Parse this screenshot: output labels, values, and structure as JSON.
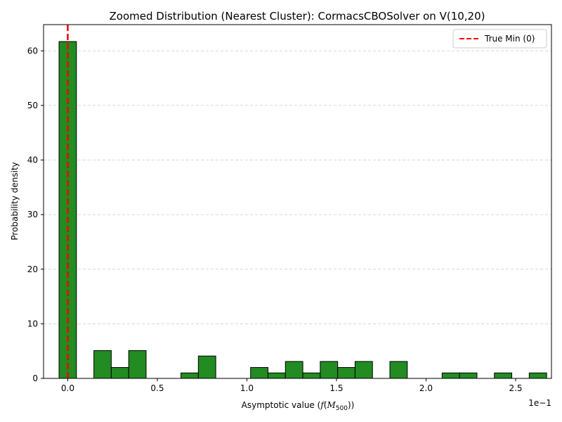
{
  "chart_data": {
    "type": "bar",
    "title": "Zoomed Distribution (Nearest Cluster): CormacsCBOSolver on V(10,20)",
    "xlabel_prefix": "Asymptotic value (",
    "xlabel_math_f": "f",
    "xlabel_math_M": "M",
    "xlabel_math_sub": "500",
    "xlabel_suffix": ")",
    "ylabel": "Probability density",
    "x_offset_text": "1e−1",
    "xlim": [
      -0.0135,
      0.27
    ],
    "ylim": [
      0,
      64.8
    ],
    "bin_width": 0.00972,
    "bin_start": -0.00486,
    "values": [
      61.7,
      0,
      5.1,
      2.0,
      5.1,
      0,
      0,
      1.0,
      4.1,
      0,
      0,
      2.0,
      1.0,
      3.1,
      1.0,
      3.1,
      2.0,
      3.1,
      0,
      3.1,
      0,
      0,
      1.0,
      1.0,
      0,
      1.0,
      0,
      1.0
    ],
    "x_ticks": [
      0.0,
      0.05,
      0.1,
      0.15,
      0.2,
      0.25
    ],
    "x_tick_labels": [
      "0.0",
      "0.5",
      "1.0",
      "1.5",
      "2.0",
      "2.5"
    ],
    "y_ticks": [
      0,
      10,
      20,
      30,
      40,
      50,
      60
    ],
    "y_tick_labels": [
      "0",
      "10",
      "20",
      "30",
      "40",
      "50",
      "60"
    ],
    "grid": "y-dashed",
    "bar_color": "#228b22",
    "bar_edge_color": "#000000",
    "reference_line": {
      "x": 0,
      "label": "True Min (0)",
      "color": "#ff0000",
      "style": "dashed"
    },
    "legend_position": "top-right"
  }
}
